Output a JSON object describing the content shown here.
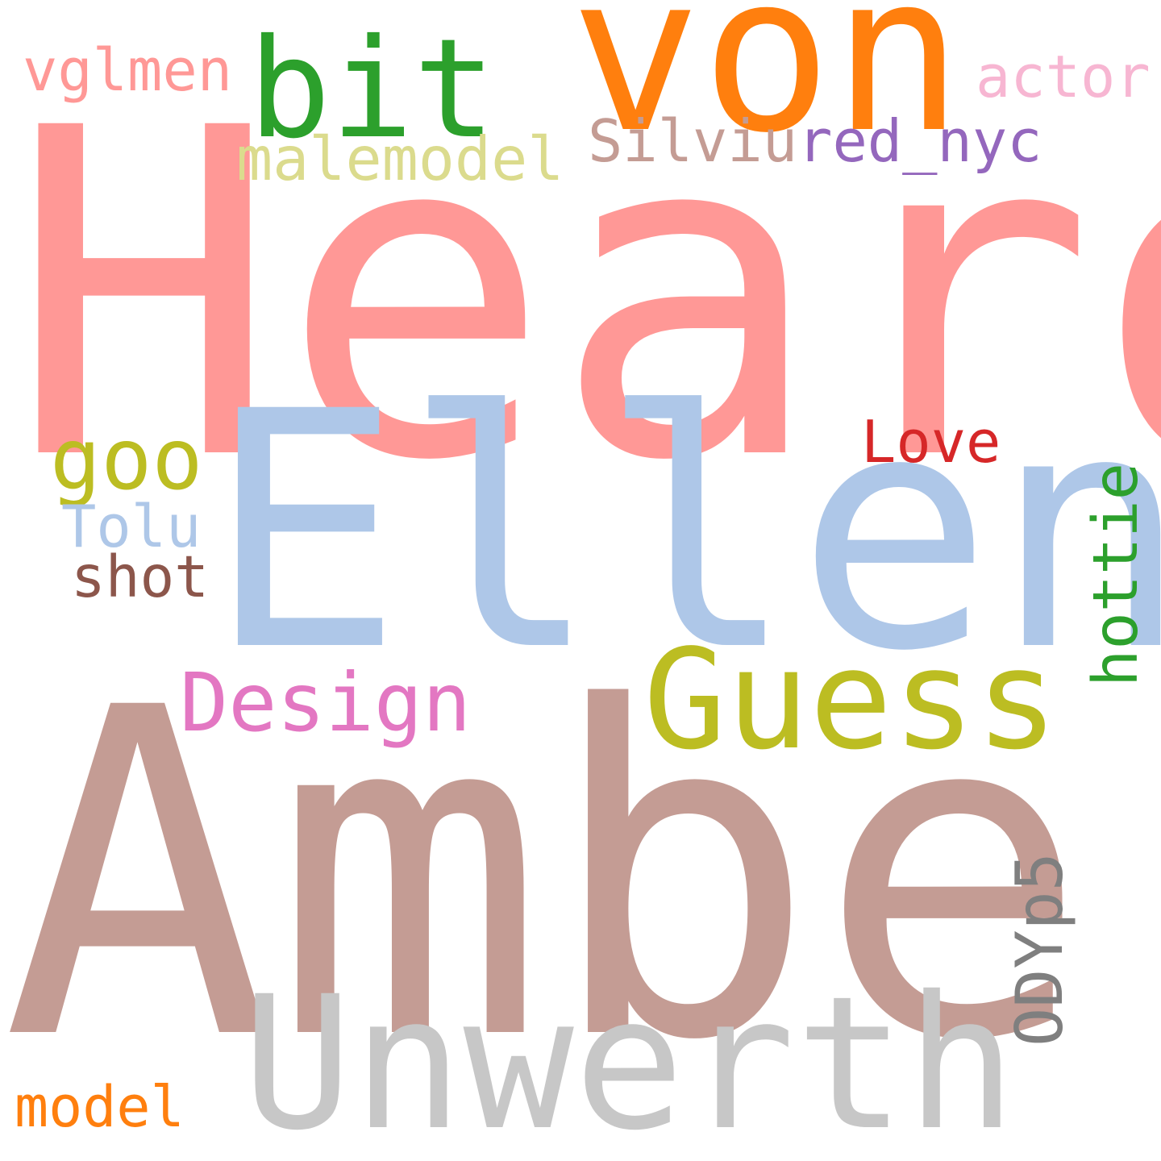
{
  "word_cloud": {
    "words": [
      {
        "id": "heard",
        "text": "Heard",
        "color": "#ff9896",
        "orientation": "horizontal"
      },
      {
        "id": "amber",
        "text": "Amber",
        "color": "#c49c94",
        "orientation": "horizontal"
      },
      {
        "id": "ellen",
        "text": "Ellen",
        "color": "#aec7e8",
        "orientation": "horizontal"
      },
      {
        "id": "von",
        "text": "von",
        "color": "#ff7f0e",
        "orientation": "horizontal"
      },
      {
        "id": "unwerth",
        "text": "Unwerth",
        "color": "#c7c7c7",
        "orientation": "horizontal"
      },
      {
        "id": "guess",
        "text": "Guess",
        "color": "#bcbd22",
        "orientation": "horizontal"
      },
      {
        "id": "bit",
        "text": "bit",
        "color": "#2ca02c",
        "orientation": "horizontal"
      },
      {
        "id": "goo",
        "text": "goo",
        "color": "#bcbd22",
        "orientation": "horizontal"
      },
      {
        "id": "design",
        "text": "Design",
        "color": "#e377c2",
        "orientation": "horizontal"
      },
      {
        "id": "silviu",
        "text": "Silviu",
        "color": "#c49c94",
        "orientation": "horizontal"
      },
      {
        "id": "red_nyc",
        "text": "red_nyc",
        "color": "#9467bd",
        "orientation": "horizontal"
      },
      {
        "id": "malemodel",
        "text": "malemodel",
        "color": "#dbdb8d",
        "orientation": "horizontal"
      },
      {
        "id": "love",
        "text": "Love",
        "color": "#d62728",
        "orientation": "horizontal"
      },
      {
        "id": "vglmen",
        "text": "vglmen",
        "color": "#ff9896",
        "orientation": "horizontal"
      },
      {
        "id": "actor",
        "text": "actor",
        "color": "#f7b6d2",
        "orientation": "horizontal"
      },
      {
        "id": "tolu",
        "text": "Tolu",
        "color": "#aec7e8",
        "orientation": "horizontal"
      },
      {
        "id": "shot",
        "text": "shot",
        "color": "#8c564b",
        "orientation": "horizontal"
      },
      {
        "id": "model",
        "text": "model",
        "color": "#ff7f0e",
        "orientation": "horizontal"
      },
      {
        "id": "hottie",
        "text": "hottie",
        "color": "#2ca02c",
        "orientation": "vertical"
      },
      {
        "id": "odyp5",
        "text": "ODYp5",
        "color": "#7f7f7f",
        "orientation": "vertical"
      }
    ]
  }
}
